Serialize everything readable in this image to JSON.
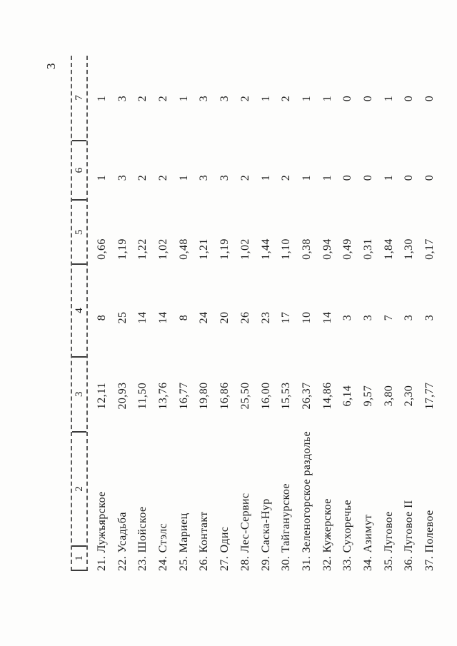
{
  "page": {
    "number": "3"
  },
  "table": {
    "header": [
      "1",
      "2",
      "3",
      "4",
      "5",
      "6",
      "7"
    ],
    "rows": [
      {
        "label": "21. Лужъярское",
        "c3": "12,11",
        "c4": "8",
        "c5": "0,66",
        "c6": "1",
        "c7": "1"
      },
      {
        "label": "22. Усадьба",
        "c3": "20,93",
        "c4": "25",
        "c5": "1,19",
        "c6": "3",
        "c7": "3"
      },
      {
        "label": "23. Шойское",
        "c3": "11,50",
        "c4": "14",
        "c5": "1,22",
        "c6": "2",
        "c7": "2"
      },
      {
        "label": "24. Стэлс",
        "c3": "13,76",
        "c4": "14",
        "c5": "1,02",
        "c6": "2",
        "c7": "2"
      },
      {
        "label": "25. Мариец",
        "c3": "16,77",
        "c4": "8",
        "c5": "0,48",
        "c6": "1",
        "c7": "1"
      },
      {
        "label": "26. Контакт",
        "c3": "19,80",
        "c4": "24",
        "c5": "1,21",
        "c6": "3",
        "c7": "3"
      },
      {
        "label": "27. Одис",
        "c3": "16,86",
        "c4": "20",
        "c5": "1,19",
        "c6": "3",
        "c7": "3"
      },
      {
        "label": "28. Лес-Сервис",
        "c3": "25,50",
        "c4": "26",
        "c5": "1,02",
        "c6": "2",
        "c7": "2"
      },
      {
        "label": "29. Саска-Нур",
        "c3": "16,00",
        "c4": "23",
        "c5": "1,44",
        "c6": "1",
        "c7": "1"
      },
      {
        "label": "30. Тайганурское",
        "c3": "15,53",
        "c4": "17",
        "c5": "1,10",
        "c6": "2",
        "c7": "2"
      },
      {
        "label": "31. Зеленогорское раздолье",
        "c3": "26,37",
        "c4": "10",
        "c5": "0,38",
        "c6": "1",
        "c7": "1"
      },
      {
        "label": "32. Кужерское",
        "c3": "14,86",
        "c4": "14",
        "c5": "0,94",
        "c6": "1",
        "c7": "1"
      },
      {
        "label": "33. Сухоречье",
        "c3": "6,14",
        "c4": "3",
        "c5": "0,49",
        "c6": "0",
        "c7": "0"
      },
      {
        "label": "34. Азимут",
        "c3": "9,57",
        "c4": "3",
        "c5": "0,31",
        "c6": "0",
        "c7": "0"
      },
      {
        "label": "35. Луговое",
        "c3": "3,80",
        "c4": "7",
        "c5": "1,84",
        "c6": "1",
        "c7": "1"
      },
      {
        "label": "36. Луговое II",
        "c3": "2,30",
        "c4": "3",
        "c5": "1,30",
        "c6": "0",
        "c7": "0"
      },
      {
        "label": "37. Полевое",
        "c3": "17,77",
        "c4": "3",
        "c5": "0,17",
        "c6": "0",
        "c7": "0"
      }
    ]
  }
}
